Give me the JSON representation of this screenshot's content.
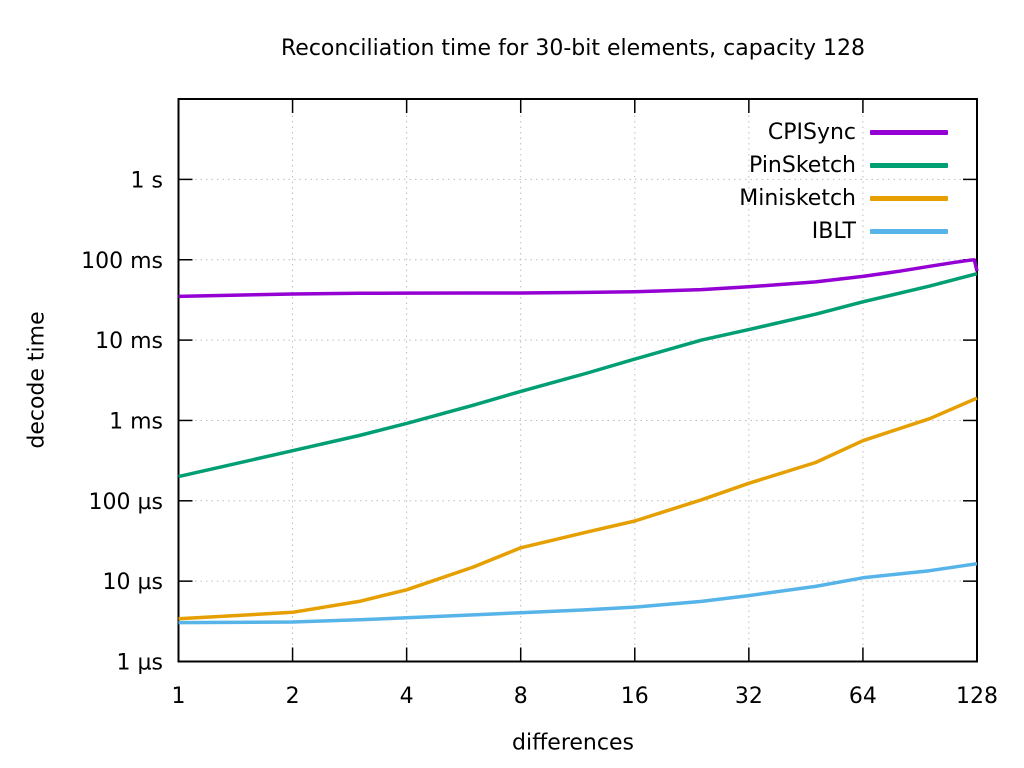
{
  "title": "Reconciliation time for 30-bit elements, capacity 128",
  "chart_data": {
    "type": "line",
    "title": "Reconciliation time for 30-bit elements, capacity 128",
    "xlabel": "differences",
    "ylabel": "decode time",
    "x_scale": "log2",
    "y_scale": "log10",
    "x_range": [
      1,
      128
    ],
    "y_range_us": [
      1,
      10000000
    ],
    "grid": "dotted",
    "legend_position": "top-right-inside",
    "value_unit": "µs",
    "x_ticks": [
      {
        "v": 1,
        "label": "1"
      },
      {
        "v": 2,
        "label": "2"
      },
      {
        "v": 4,
        "label": "4"
      },
      {
        "v": 8,
        "label": "8"
      },
      {
        "v": 16,
        "label": "16"
      },
      {
        "v": 32,
        "label": "32"
      },
      {
        "v": 64,
        "label": "64"
      },
      {
        "v": 128,
        "label": "128"
      }
    ],
    "y_ticks": [
      {
        "v": 1,
        "label": "1 µs"
      },
      {
        "v": 10,
        "label": "10 µs"
      },
      {
        "v": 100,
        "label": "100 µs"
      },
      {
        "v": 1000,
        "label": "1 ms"
      },
      {
        "v": 10000,
        "label": "10 ms"
      },
      {
        "v": 100000,
        "label": "100 ms"
      },
      {
        "v": 1000000,
        "label": "1 s"
      }
    ],
    "series": [
      {
        "name": "CPISync",
        "color": "#9400d3",
        "points_us": [
          [
            1,
            35000
          ],
          [
            2,
            37500
          ],
          [
            3,
            38200
          ],
          [
            4,
            38500
          ],
          [
            6,
            38600
          ],
          [
            8,
            38600
          ],
          [
            12,
            39200
          ],
          [
            16,
            40000
          ],
          [
            24,
            42500
          ],
          [
            32,
            46000
          ],
          [
            48,
            53000
          ],
          [
            64,
            62000
          ],
          [
            80,
            72000
          ],
          [
            96,
            83000
          ],
          [
            112,
            93000
          ],
          [
            122,
            98500
          ],
          [
            126,
            99500
          ],
          [
            128,
            72000
          ]
        ]
      },
      {
        "name": "PinSketch",
        "color": "#009e73",
        "points_us": [
          [
            1,
            200
          ],
          [
            2,
            420
          ],
          [
            3,
            650
          ],
          [
            4,
            920
          ],
          [
            6,
            1550
          ],
          [
            8,
            2300
          ],
          [
            12,
            3900
          ],
          [
            16,
            5800
          ],
          [
            24,
            10000
          ],
          [
            32,
            13500
          ],
          [
            48,
            21000
          ],
          [
            64,
            30000
          ],
          [
            96,
            47000
          ],
          [
            128,
            67000
          ]
        ]
      },
      {
        "name": "Minisketch",
        "color": "#e69f00",
        "points_us": [
          [
            1,
            3.4
          ],
          [
            2,
            4.1
          ],
          [
            3,
            5.6
          ],
          [
            4,
            7.8
          ],
          [
            6,
            15
          ],
          [
            8,
            26
          ],
          [
            12,
            41
          ],
          [
            16,
            56
          ],
          [
            24,
            103
          ],
          [
            32,
            165
          ],
          [
            48,
            300
          ],
          [
            64,
            560
          ],
          [
            96,
            1050
          ],
          [
            128,
            1900
          ]
        ]
      },
      {
        "name": "IBLT",
        "color": "#56b4e9",
        "points_us": [
          [
            1,
            3.05
          ],
          [
            2,
            3.1
          ],
          [
            3,
            3.3
          ],
          [
            4,
            3.5
          ],
          [
            6,
            3.8
          ],
          [
            8,
            4.05
          ],
          [
            12,
            4.4
          ],
          [
            16,
            4.75
          ],
          [
            24,
            5.6
          ],
          [
            32,
            6.6
          ],
          [
            48,
            8.6
          ],
          [
            64,
            11
          ],
          [
            96,
            13.5
          ],
          [
            128,
            16.5
          ]
        ]
      }
    ],
    "style": {
      "grid_color": "#bdbdbd",
      "border_color": "#000000",
      "line_width": 3.5
    }
  }
}
